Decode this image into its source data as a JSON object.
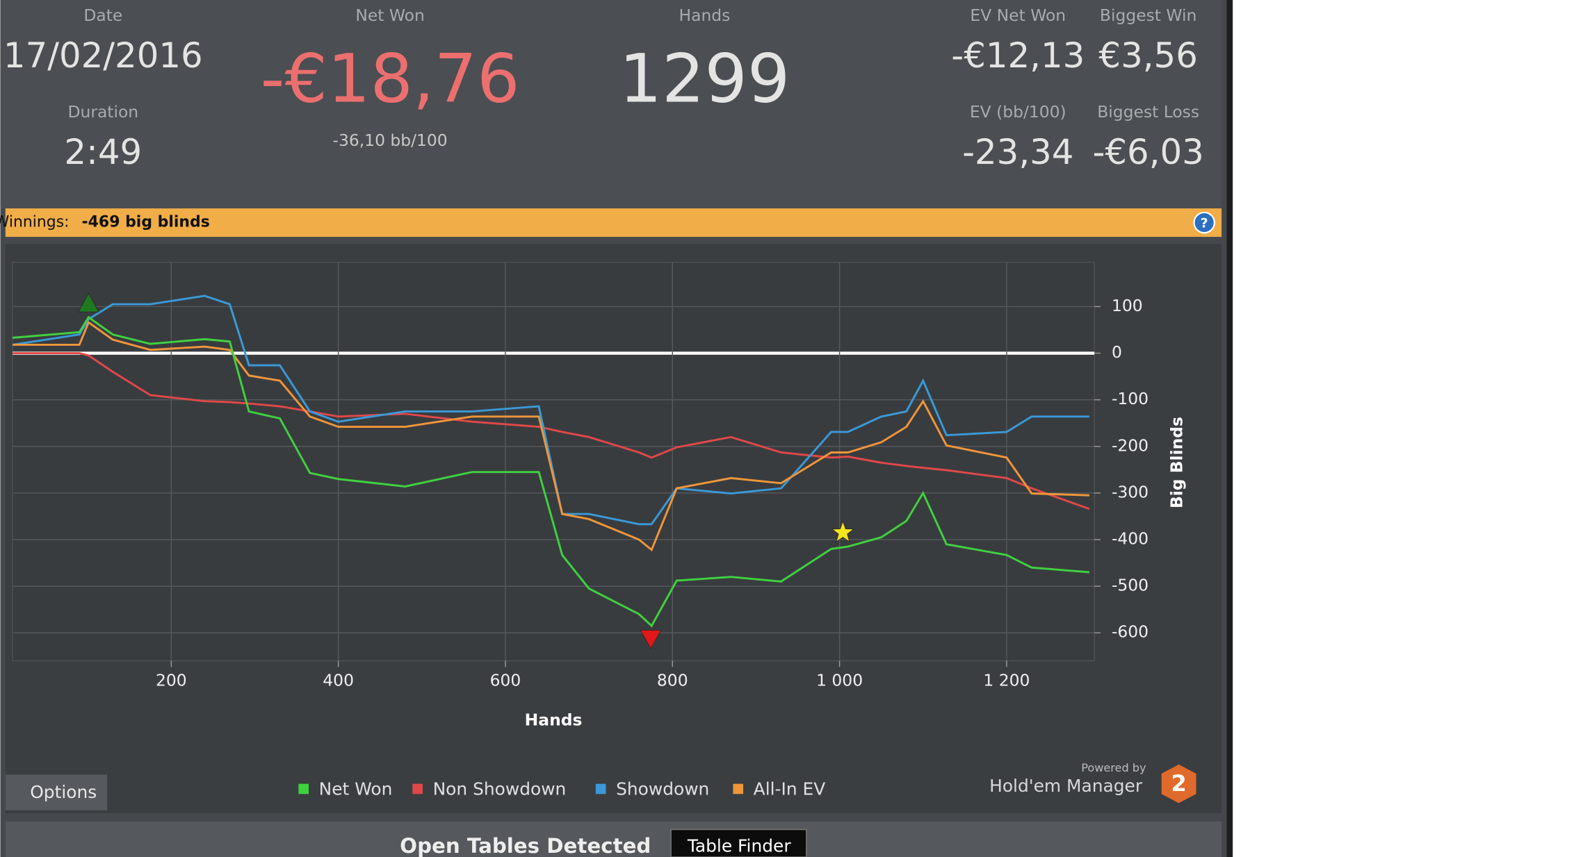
{
  "header": {
    "stats": [
      {
        "label": "Date",
        "value": "17/02/2016"
      },
      {
        "label": "Duration",
        "value": "2:49"
      },
      {
        "label": "Net Won",
        "value": "-€18,76",
        "sub": "-36,10 bb/100"
      },
      {
        "label": "Hands",
        "value": "1299"
      },
      {
        "label": "EV Net Won",
        "value": "-€12,13"
      },
      {
        "label": "Biggest Win",
        "value": "€3,56"
      },
      {
        "label": "EV (bb/100)",
        "value": "-23,34"
      },
      {
        "label": "Biggest Loss",
        "value": "-€6,03"
      }
    ]
  },
  "winnings": {
    "label": "Winnings:",
    "value": "-469 big blinds"
  },
  "chart_data": {
    "type": "line",
    "x_label": "Hands",
    "y_label": "Big Blinds",
    "y_axis_side": "right",
    "grid": true,
    "xlim": [
      10,
      1305
    ],
    "ylim": [
      -660,
      195
    ],
    "xticks": [
      200,
      400,
      600,
      800,
      {
        "value": 1000,
        "label": "1 000"
      },
      {
        "value": 1200,
        "label": "1 200"
      }
    ],
    "yticks": [
      -600,
      -500,
      -400,
      -300,
      -200,
      -100,
      0,
      100
    ],
    "zero_line_color": "#ffffff",
    "x": [
      10,
      90,
      101,
      130,
      175,
      240,
      270,
      293,
      330,
      366,
      400,
      480,
      560,
      640,
      668,
      700,
      760,
      775,
      805,
      870,
      930,
      990,
      1010,
      1050,
      1080,
      1100,
      1128,
      1200,
      1230,
      1299
    ],
    "series": [
      {
        "name": "Net Won",
        "color": "#3fd23f",
        "values": [
          33,
          45,
          77,
          40,
          20,
          30,
          25,
          -125,
          -140,
          -257,
          -270,
          -286,
          -255,
          -255,
          -433,
          -505,
          -560,
          -585,
          -488,
          -480,
          -490,
          -420,
          -415,
          -395,
          -360,
          -300,
          -410,
          -433,
          -460,
          -470
        ]
      },
      {
        "name": "Non Showdown",
        "color": "#e04848",
        "values": [
          0,
          0,
          -5,
          -40,
          -90,
          -103,
          -105,
          -108,
          -114,
          -125,
          -136,
          -130,
          -147,
          -158,
          -169,
          -180,
          -213,
          -224,
          -202,
          -180,
          -213,
          -224,
          -222,
          -235,
          -242,
          -246,
          -251,
          -268,
          -290,
          -334
        ]
      },
      {
        "name": "Showdown",
        "color": "#3a9ad9",
        "values": [
          18,
          40,
          73,
          105,
          105,
          123,
          105,
          -26,
          -26,
          -125,
          -147,
          -125,
          -125,
          -114,
          -345,
          -345,
          -367,
          -367,
          -290,
          -301,
          -290,
          -169,
          -169,
          -136,
          -125,
          -59,
          -176,
          -169,
          -136,
          -136
        ]
      },
      {
        "name": "All-In EV",
        "color": "#f0963a",
        "values": [
          18,
          18,
          66,
          29,
          7,
          14,
          7,
          -48,
          -59,
          -136,
          -158,
          -158,
          -136,
          -136,
          -345,
          -356,
          -400,
          -422,
          -290,
          -268,
          -279,
          -213,
          -213,
          -191,
          -158,
          -103,
          -198,
          -224,
          -301,
          -305
        ]
      }
    ],
    "markers": [
      {
        "x": 101,
        "y": 106,
        "shape": "triangle-up",
        "color": "#1f7a1f"
      },
      {
        "x": 774,
        "y": -612,
        "shape": "triangle-down",
        "color": "#e01818"
      },
      {
        "x": 1004,
        "y": -385,
        "shape": "star",
        "color": "#f5e61a"
      }
    ]
  },
  "options": "Options",
  "branding": {
    "powered_by": "Powered by",
    "product": "Hold'em Manager",
    "badge": "2"
  },
  "footer": {
    "text": "Open Tables Detected",
    "button": "Table Finder"
  }
}
